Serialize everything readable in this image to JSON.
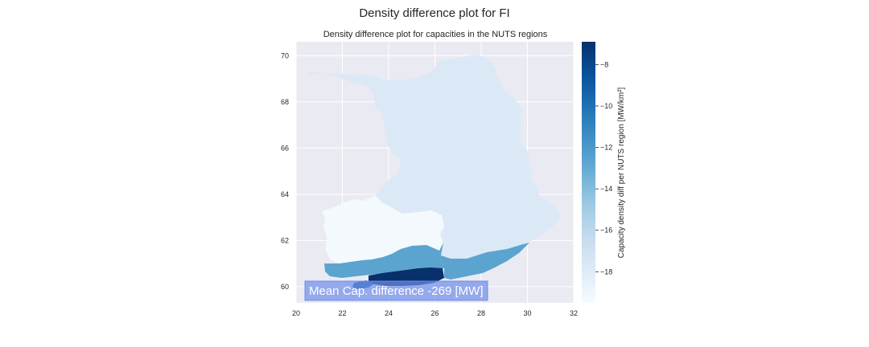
{
  "figure": {
    "title": "Density difference plot for FI"
  },
  "chart_data": {
    "type": "choropleth",
    "title": "Density difference plot for capacities in the NUTS regions",
    "xlabel": "",
    "ylabel": "",
    "xlim": [
      20,
      32
    ],
    "ylim": [
      59.3,
      70.6
    ],
    "x_ticks": [
      20,
      22,
      24,
      26,
      28,
      30,
      32
    ],
    "y_ticks": [
      60,
      62,
      64,
      66,
      68,
      70
    ],
    "grid": true,
    "colormap": "Blues",
    "colorbar": {
      "label": "Capacity density diff per NUTS region [MW/km²]",
      "range": [
        -19.5,
        -6.9
      ],
      "ticks": [
        -8,
        -10,
        -12,
        -14,
        -16,
        -18
      ]
    },
    "regions": [
      {
        "id": "north-east",
        "value": -18.0,
        "color": "#dbe9f6"
      },
      {
        "id": "west",
        "value": -19.4,
        "color": "#f4f9fe"
      },
      {
        "id": "south-east",
        "value": -12.3,
        "color": "#5ca4d0"
      },
      {
        "id": "south-west-strip",
        "value": -12.3,
        "color": "#5ca4d0"
      },
      {
        "id": "helsinki-uusimaa",
        "value": -7.0,
        "color": "#08306b"
      },
      {
        "id": "aland-coast",
        "value": -9.5,
        "color": "#1f63a8"
      }
    ],
    "annotation": {
      "text": "Mean Cap. difference -269 [MW]",
      "box_color": "#6d8de8"
    }
  }
}
